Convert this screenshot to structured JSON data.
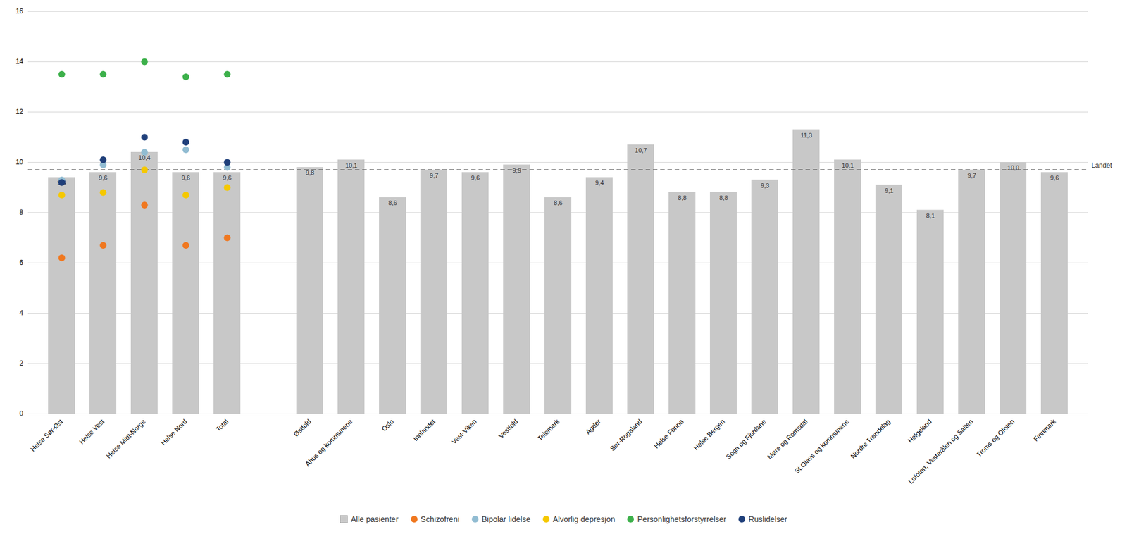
{
  "chart_data": {
    "type": "bar",
    "categories": [
      "Helse Sør-Øst",
      "Helse Vest",
      "Helse Midt-Norge",
      "Helse Nord",
      "Total",
      null,
      "Østfold",
      "Ahus og kommunene",
      "Oslo",
      "Innlandet",
      "Vest-Viken",
      "Vestfold",
      "Telemark",
      "Agder",
      "Sør-Rogaland",
      "Helse Fonna",
      "Helse Bergen",
      "Sogn og Fjordane",
      "Møre og Romsdal",
      "St.Olavs og kommunene",
      "Nordre Trøndelag",
      "Helgeland",
      "Lofoten, Vesterålen og Salten",
      "Troms og Ofoten",
      "Finnmark"
    ],
    "series": [
      {
        "name": "Alle pasienter",
        "type": "bar",
        "color": "#c8c8c8",
        "data_labels": true,
        "values": [
          9.4,
          9.6,
          10.4,
          9.6,
          9.6,
          null,
          9.8,
          10.1,
          8.6,
          9.7,
          9.6,
          9.9,
          8.6,
          9.4,
          10.7,
          8.8,
          8.8,
          9.3,
          11.3,
          10.1,
          9.1,
          8.1,
          9.7,
          10.0,
          9.6
        ],
        "value_labels": [
          "9,4",
          "9,6",
          "10,4",
          "9,6",
          "9,6",
          null,
          "9,8",
          "10,1",
          "8,6",
          "9,7",
          "9,6",
          "9,9",
          "8,6",
          "9,4",
          "10,7",
          "8,8",
          "8,8",
          "9,3",
          "11,3",
          "10,1",
          "9,1",
          "8,1",
          "9,7",
          "10,0",
          "9,6"
        ]
      },
      {
        "name": "Schizofreni",
        "type": "scatter",
        "color": "#f07820",
        "values": [
          6.2,
          6.7,
          8.3,
          6.7,
          7.0,
          null,
          null,
          null,
          null,
          null,
          null,
          null,
          null,
          null,
          null,
          null,
          null,
          null,
          null,
          null,
          null,
          null,
          null,
          null,
          null
        ]
      },
      {
        "name": "Bipolar lidelse",
        "type": "scatter",
        "color": "#91bcd2",
        "values": [
          9.3,
          9.9,
          10.4,
          10.5,
          9.8,
          null,
          null,
          null,
          null,
          null,
          null,
          null,
          null,
          null,
          null,
          null,
          null,
          null,
          null,
          null,
          null,
          null,
          null,
          null,
          null
        ]
      },
      {
        "name": "Alvorlig depresjon",
        "type": "scatter",
        "color": "#f5c800",
        "values": [
          8.7,
          8.8,
          9.7,
          8.7,
          9.0,
          null,
          null,
          null,
          null,
          null,
          null,
          null,
          null,
          null,
          null,
          null,
          null,
          null,
          null,
          null,
          null,
          null,
          null,
          null,
          null
        ]
      },
      {
        "name": "Personlighetsforstyrrelser",
        "type": "scatter",
        "color": "#3cb04a",
        "values": [
          13.5,
          13.5,
          14.0,
          13.4,
          13.5,
          null,
          null,
          null,
          null,
          null,
          null,
          null,
          null,
          null,
          null,
          null,
          null,
          null,
          null,
          null,
          null,
          null,
          null,
          null,
          null
        ]
      },
      {
        "name": "Ruslidelser",
        "type": "scatter",
        "color": "#1f3f7a",
        "values": [
          9.2,
          10.1,
          11.0,
          10.8,
          10.0,
          null,
          null,
          null,
          null,
          null,
          null,
          null,
          null,
          null,
          null,
          null,
          null,
          null,
          null,
          null,
          null,
          null,
          null,
          null,
          null
        ]
      }
    ],
    "annotations": [
      {
        "type": "hline",
        "y": 9.7,
        "text": "Landet",
        "line_style": "dashed"
      }
    ],
    "ylim": [
      0,
      16
    ],
    "yticks": [
      0,
      2,
      4,
      6,
      8,
      10,
      12,
      14,
      16
    ],
    "grid": true,
    "legend": "bottom"
  }
}
